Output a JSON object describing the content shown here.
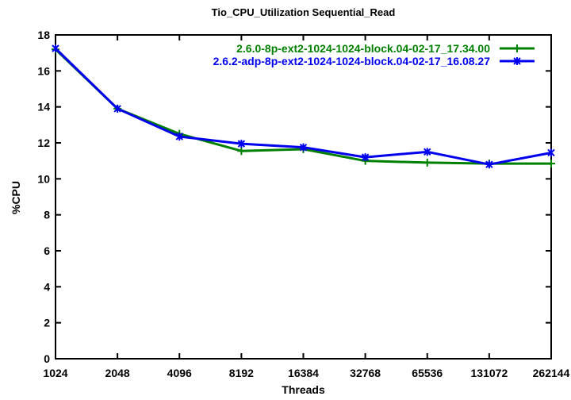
{
  "chart_data": {
    "type": "line",
    "title": "Tio_CPU_Utilization Sequential_Read",
    "xlabel": "Threads",
    "ylabel": "%CPU",
    "x_scale": "log2-categorical",
    "categories": [
      "1024",
      "2048",
      "4096",
      "8192",
      "16384",
      "32768",
      "65536",
      "131072",
      "262144"
    ],
    "ylim": [
      0,
      18
    ],
    "yticks": [
      0,
      2,
      4,
      6,
      8,
      10,
      12,
      14,
      16,
      18
    ],
    "grid": false,
    "legend_position": "top-right-inside",
    "axis_color": "#000000",
    "background_color": "#ffffff",
    "series": [
      {
        "name": "2.6.0-8p-ext2-1024-1024-block.04-02-17_17.34.00",
        "color": "#008000",
        "marker": "plus",
        "values": [
          17.2,
          13.9,
          12.5,
          11.55,
          11.65,
          11.0,
          10.9,
          10.85,
          10.85
        ]
      },
      {
        "name": "2.6.2-adp-8p-ext2-1024-1024-block.04-02-17_16.08.27",
        "color": "#0000ee",
        "marker": "asterisk",
        "values": [
          17.25,
          13.9,
          12.35,
          11.95,
          11.75,
          11.2,
          11.5,
          10.8,
          11.45
        ]
      }
    ]
  }
}
